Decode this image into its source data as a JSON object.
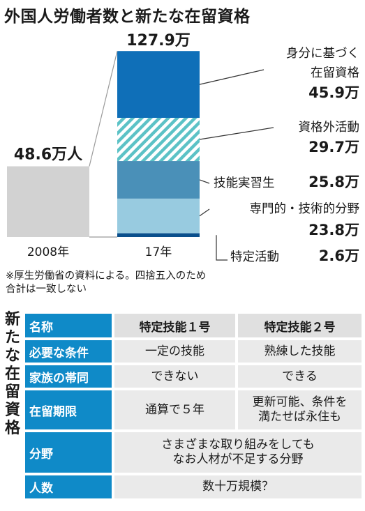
{
  "title": "外国人労働者数と新たな在留資格",
  "chart_data": {
    "type": "bar",
    "categories": [
      "2008年",
      "17年"
    ],
    "totals": [
      "48.6万人",
      "127.9万"
    ],
    "total_values": [
      48.6,
      127.9
    ],
    "unit": "万人",
    "stacked_segments_17": [
      {
        "name": "身分に基づく在留資格",
        "lines": [
          "身分に基づく",
          "在留資格"
        ],
        "value": 45.9,
        "label": "45.9万",
        "color": "#0f6fb8",
        "pattern": "solid"
      },
      {
        "name": "資格外活動",
        "lines": [
          "資格外活動"
        ],
        "value": 29.7,
        "label": "29.7万",
        "color": "#5cc2c6",
        "pattern": "hatched"
      },
      {
        "name": "技能実習生",
        "lines": [
          "技能実習生"
        ],
        "value": 25.8,
        "label": "25.8万",
        "color": "#4a90b8",
        "pattern": "solid"
      },
      {
        "name": "専門的・技術的分野",
        "lines": [
          "専門的・技術的分野"
        ],
        "value": 23.8,
        "label": "23.8万",
        "color": "#98cbe0",
        "pattern": "solid"
      },
      {
        "name": "特定活動",
        "lines": [
          "特定活動"
        ],
        "value": 2.6,
        "label": "2.6万",
        "color": "#0a4f8c",
        "pattern": "solid"
      }
    ]
  },
  "note": [
    "※厚生労働省の資料による。四捨五入のため",
    "合計は一致しない"
  ],
  "table": {
    "title": "新たな在留資格",
    "header": {
      "label": "名称",
      "col1": "特定技能１号",
      "col2": "特定技能２号"
    },
    "rows": {
      "conditions": {
        "label": "必要な条件",
        "col1": "一定の技能",
        "col2": "熟練した技能"
      },
      "family": {
        "label": "家族の帯同",
        "col1": "できない",
        "col2": "できる"
      },
      "period": {
        "label": "在留期限",
        "col1": "通算で５年",
        "col2_line1": "更新可能、条件を",
        "col2_line2": "満たせば永住も"
      },
      "field": {
        "label": "分野",
        "line1": "さまざまな取り組みをしても",
        "line2": "なお人材が不足する分野"
      },
      "count": {
        "label": "人数",
        "value": "数十万規模？"
      }
    }
  }
}
